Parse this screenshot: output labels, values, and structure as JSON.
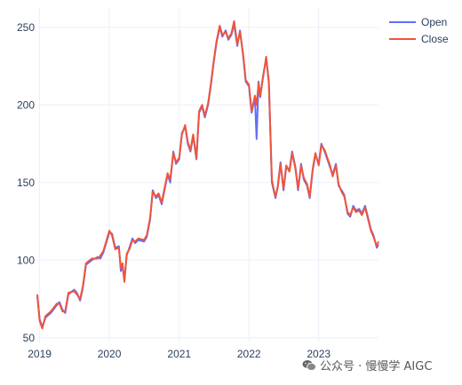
{
  "chart_data": {
    "type": "line",
    "x_ticks": [
      "2019",
      "2020",
      "2021",
      "2022",
      "2023"
    ],
    "y_ticks": [
      50,
      100,
      150,
      200,
      250
    ],
    "xlim": [
      "2018-12-20",
      "2023-11-10"
    ],
    "ylim": [
      47,
      263
    ],
    "grid": true,
    "legend_position": "top-right",
    "series": [
      {
        "name": "Open",
        "color": "#636efa"
      },
      {
        "name": "Close",
        "color": "#ef553b"
      }
    ],
    "x": [
      "2018-12-20",
      "2019-01-01",
      "2019-01-15",
      "2019-02-01",
      "2019-03-01",
      "2019-04-01",
      "2019-04-15",
      "2019-05-01",
      "2019-05-15",
      "2019-06-01",
      "2019-07-01",
      "2019-07-15",
      "2019-08-01",
      "2019-08-15",
      "2019-09-01",
      "2019-10-01",
      "2019-11-01",
      "2019-11-15",
      "2019-12-01",
      "2020-01-01",
      "2020-01-15",
      "2020-02-01",
      "2020-02-20",
      "2020-03-01",
      "2020-03-10",
      "2020-03-20",
      "2020-04-01",
      "2020-04-15",
      "2020-05-01",
      "2020-05-15",
      "2020-06-01",
      "2020-07-01",
      "2020-07-15",
      "2020-08-01",
      "2020-08-15",
      "2020-09-01",
      "2020-09-15",
      "2020-10-01",
      "2020-11-01",
      "2020-11-15",
      "2020-12-01",
      "2020-12-15",
      "2021-01-01",
      "2021-01-15",
      "2021-02-01",
      "2021-02-15",
      "2021-03-01",
      "2021-03-15",
      "2021-04-01",
      "2021-04-15",
      "2021-05-01",
      "2021-05-15",
      "2021-06-01",
      "2021-06-15",
      "2021-07-01",
      "2021-07-15",
      "2021-08-01",
      "2021-08-15",
      "2021-09-01",
      "2021-09-15",
      "2021-10-01",
      "2021-10-15",
      "2021-11-01",
      "2021-11-15",
      "2021-12-01",
      "2021-12-15",
      "2022-01-01",
      "2022-01-15",
      "2022-02-01",
      "2022-02-10",
      "2022-02-20",
      "2022-03-01",
      "2022-03-15",
      "2022-04-01",
      "2022-04-15",
      "2022-05-01",
      "2022-05-10",
      "2022-05-20",
      "2022-06-01",
      "2022-06-15",
      "2022-07-01",
      "2022-07-15",
      "2022-08-01",
      "2022-08-15",
      "2022-09-01",
      "2022-09-15",
      "2022-10-01",
      "2022-10-15",
      "2022-11-01",
      "2022-11-15",
      "2022-12-01",
      "2022-12-15",
      "2023-01-01",
      "2023-01-15",
      "2023-02-01",
      "2023-02-15",
      "2023-03-01",
      "2023-03-15",
      "2023-04-01",
      "2023-04-15",
      "2023-05-01",
      "2023-05-15",
      "2023-06-01",
      "2023-06-15",
      "2023-07-01",
      "2023-07-15",
      "2023-08-01",
      "2023-08-15",
      "2023-09-01",
      "2023-09-15",
      "2023-10-01",
      "2023-10-15",
      "2023-11-01",
      "2023-11-10"
    ],
    "open": [
      77,
      62,
      57,
      63,
      66,
      71,
      73,
      68,
      66,
      78,
      81,
      79,
      74,
      82,
      97,
      100,
      102,
      101,
      105,
      118,
      117,
      108,
      109,
      93,
      96,
      87,
      103,
      108,
      114,
      111,
      113,
      112,
      115,
      126,
      145,
      140,
      142,
      136,
      155,
      150,
      170,
      162,
      165,
      182,
      186,
      175,
      170,
      180,
      165,
      195,
      199,
      192,
      200,
      212,
      228,
      240,
      250,
      244,
      248,
      242,
      245,
      252,
      238,
      248,
      232,
      215,
      212,
      195,
      205,
      178,
      215,
      205,
      218,
      230,
      215,
      150,
      145,
      140,
      148,
      163,
      145,
      160,
      158,
      170,
      160,
      145,
      162,
      152,
      148,
      140,
      158,
      168,
      162,
      175,
      170,
      165,
      160,
      155,
      162,
      148,
      145,
      142,
      130,
      128,
      135,
      132,
      133,
      130,
      135,
      128,
      120,
      116,
      108,
      110
    ],
    "close": [
      78,
      61,
      56,
      64,
      67,
      72,
      72,
      67,
      67,
      79,
      80,
      78,
      75,
      83,
      98,
      101,
      101,
      103,
      106,
      119,
      116,
      107,
      108,
      95,
      98,
      86,
      104,
      107,
      113,
      112,
      114,
      113,
      116,
      127,
      144,
      141,
      143,
      137,
      156,
      152,
      169,
      163,
      166,
      181,
      187,
      176,
      171,
      181,
      166,
      196,
      200,
      193,
      201,
      213,
      229,
      241,
      251,
      245,
      247,
      243,
      246,
      254,
      239,
      247,
      233,
      216,
      213,
      196,
      206,
      200,
      214,
      206,
      217,
      231,
      214,
      152,
      146,
      141,
      147,
      162,
      146,
      161,
      157,
      169,
      159,
      146,
      161,
      153,
      149,
      141,
      159,
      169,
      161,
      174,
      171,
      166,
      161,
      154,
      161,
      149,
      144,
      141,
      131,
      129,
      134,
      131,
      132,
      129,
      134,
      127,
      119,
      115,
      109,
      112
    ]
  },
  "watermark": {
    "text": "公众号 · 慢慢学 AIGC",
    "icon": "wechat-icon"
  }
}
